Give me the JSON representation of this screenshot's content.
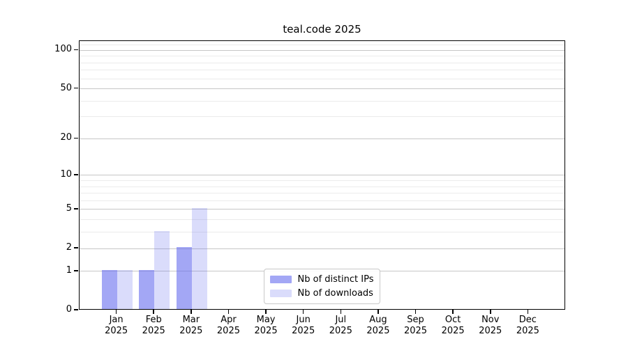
{
  "title": "teal.code 2025",
  "chart_data": {
    "type": "bar",
    "title": "teal.code 2025",
    "categories": [
      "Jan 2025",
      "Feb 2025",
      "Mar 2025",
      "Apr 2025",
      "May 2025",
      "Jun 2025",
      "Jul 2025",
      "Aug 2025",
      "Sep 2025",
      "Oct 2025",
      "Nov 2025",
      "Dec 2025"
    ],
    "series": [
      {
        "name": "Nb of distinct IPs",
        "color": "rgba(102,108,238,0.60)",
        "values": [
          1,
          1,
          2,
          0,
          0,
          0,
          0,
          0,
          0,
          0,
          0,
          0
        ]
      },
      {
        "name": "Nb of downloads",
        "color": "rgba(102,108,238,0.24)",
        "values": [
          1,
          3,
          5,
          0,
          0,
          0,
          0,
          0,
          0,
          0,
          0,
          0
        ]
      }
    ],
    "xlabel": "",
    "ylabel": "",
    "yscale": "log1p",
    "ylim": [
      0,
      118
    ],
    "yticks": [
      0,
      1,
      2,
      5,
      10,
      20,
      50,
      100
    ],
    "yticks_minor": [
      3,
      4,
      6,
      7,
      8,
      9,
      30,
      40,
      60,
      70,
      80,
      90,
      110
    ],
    "grid": "horizontal",
    "legend_position": "lower center"
  },
  "colors": {
    "bar_distinct_ips": "rgba(102,108,238,0.60)",
    "bar_downloads": "rgba(102,108,238,0.24)",
    "grid_major": "#c6c6c6",
    "grid_minor": "#ebebeb",
    "axis": "#000000"
  }
}
